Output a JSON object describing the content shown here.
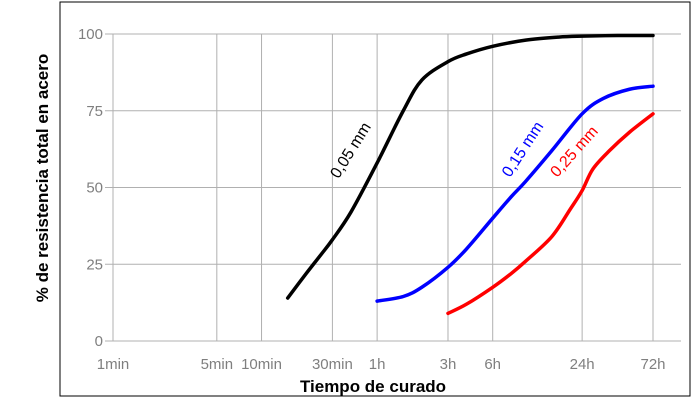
{
  "chart_data": {
    "type": "line",
    "xlabel": "Tiempo de curado",
    "ylabel": "% de resistencia total en acero",
    "x_ticks": [
      "1min",
      "5min",
      "10min",
      "30min",
      "1h",
      "3h",
      "6h",
      "24h",
      "72h"
    ],
    "x_tick_minutes": [
      1,
      5,
      10,
      30,
      60,
      180,
      360,
      1440,
      4320
    ],
    "x_scale": "log",
    "y_ticks": [
      "0",
      "25",
      "50",
      "75",
      "100"
    ],
    "y_tick_values": [
      0,
      25,
      50,
      75,
      100
    ],
    "ylim": [
      0,
      100
    ],
    "grid": true,
    "series": [
      {
        "name": "0,05 mm",
        "color": "#000000",
        "x_minutes": [
          15,
          20,
          25,
          30,
          40,
          60,
          90,
          120,
          180,
          240,
          360,
          600,
          1000,
          1440,
          2500,
          4320
        ],
        "values": [
          14,
          22,
          28,
          33,
          42,
          58,
          75,
          85,
          91,
          93.5,
          96,
          98,
          99,
          99.3,
          99.5,
          99.5
        ]
      },
      {
        "name": "0,15 mm",
        "color": "#0000ff",
        "x_minutes": [
          60,
          90,
          120,
          180,
          240,
          360,
          480,
          600,
          900,
          1440,
          2000,
          3000,
          4320
        ],
        "values": [
          13,
          14.5,
          17.5,
          24,
          30,
          40,
          47,
          52,
          62,
          74,
          79,
          82,
          83
        ]
      },
      {
        "name": "0,25 mm",
        "color": "#ff0000",
        "x_minutes": [
          180,
          240,
          360,
          480,
          600,
          900,
          1200,
          1440,
          1700,
          2200,
          3000,
          4320
        ],
        "values": [
          9,
          12,
          17.5,
          22,
          26,
          34,
          43,
          49,
          56,
          62,
          68,
          74
        ]
      }
    ]
  }
}
